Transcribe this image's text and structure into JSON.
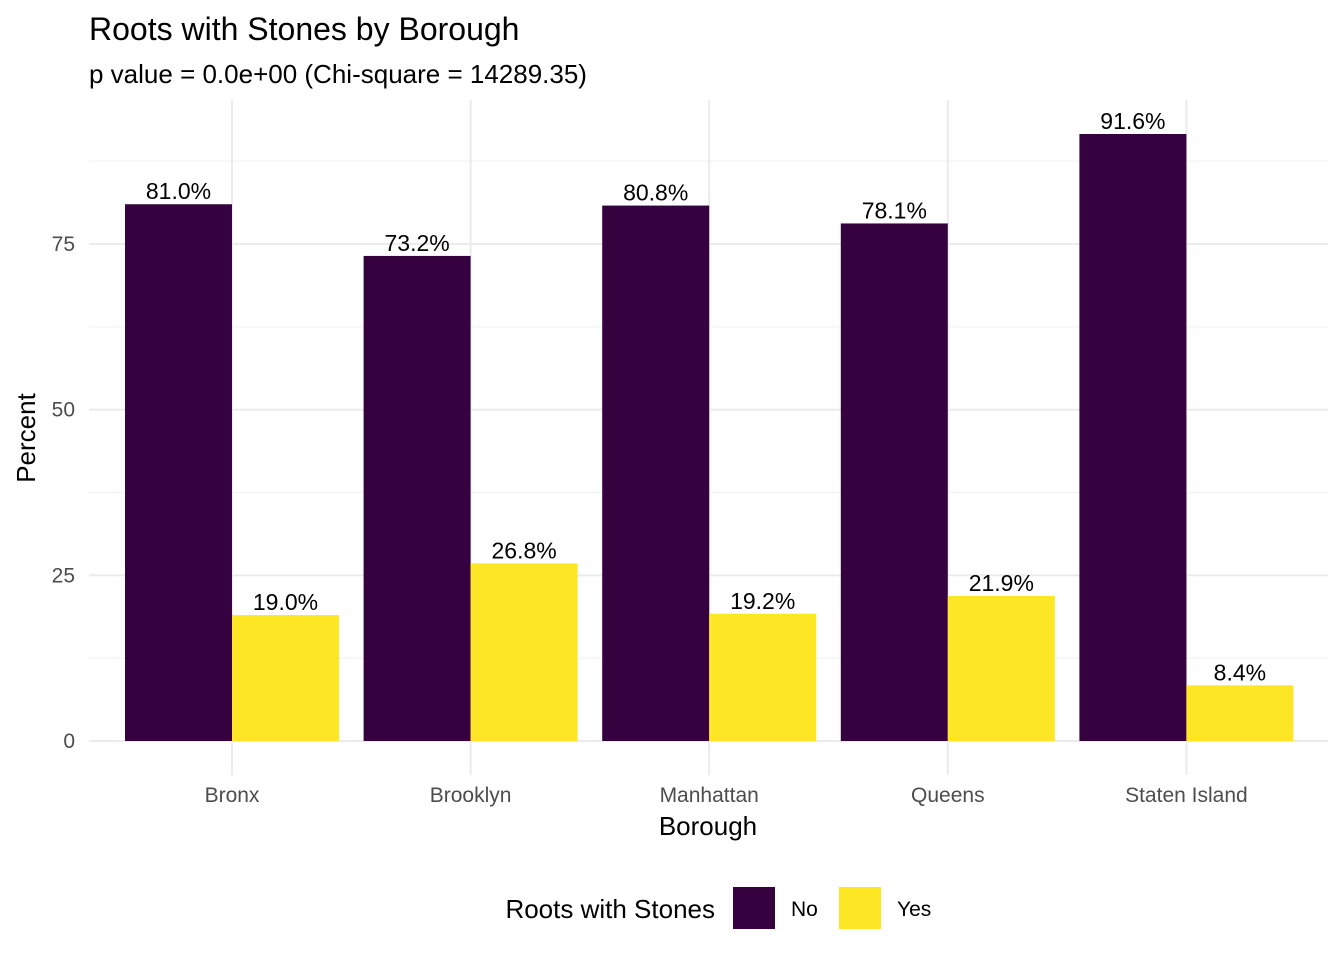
{
  "chart_data": {
    "type": "bar",
    "title": "Roots with Stones by Borough",
    "subtitle": "p value = 0.0e+00 (Chi-square = 14289.35)",
    "xlabel": "Borough",
    "ylabel": "Percent",
    "categories": [
      "Bronx",
      "Brooklyn",
      "Manhattan",
      "Queens",
      "Staten Island"
    ],
    "series": [
      {
        "name": "No",
        "color": "#36013f",
        "values": [
          81.0,
          73.2,
          80.8,
          78.1,
          91.6
        ],
        "labels": [
          "81.0%",
          "73.2%",
          "80.8%",
          "78.1%",
          "91.6%"
        ]
      },
      {
        "name": "Yes",
        "color": "#fde725",
        "values": [
          19.0,
          26.8,
          19.2,
          21.9,
          8.4
        ],
        "labels": [
          "19.0%",
          "26.8%",
          "19.2%",
          "21.9%",
          "8.4%"
        ]
      }
    ],
    "ylim": [
      0,
      96
    ],
    "yticks": [
      0,
      25,
      50,
      75
    ],
    "ytick_labels": [
      "0",
      "25",
      "50",
      "75"
    ],
    "grid": true,
    "legend": {
      "title": "Roots with Stones",
      "placement": "bottom"
    }
  }
}
